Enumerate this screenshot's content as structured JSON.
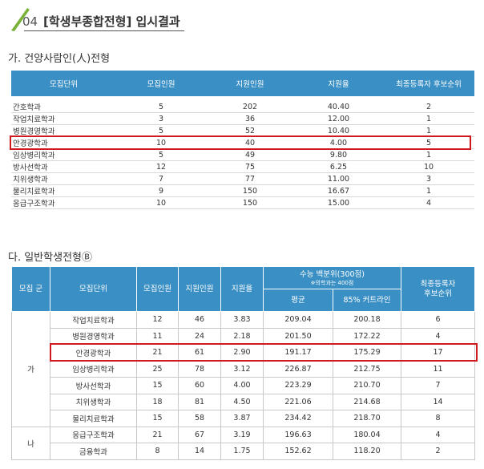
{
  "header": {
    "number": "04",
    "title": "[학생부종합전형] 입시결과"
  },
  "section1": {
    "title": "가. 건양사람인(人)전형",
    "table": {
      "headers": [
        "모집단위",
        "모집인원",
        "지원인원",
        "지원율",
        "최종등록자 후보순위"
      ],
      "rows": [
        [
          "간호학과",
          "5",
          "202",
          "40.40",
          "2"
        ],
        [
          "작업치료학과",
          "3",
          "36",
          "12.00",
          "1"
        ],
        [
          "병원경영학과",
          "5",
          "52",
          "10.40",
          "1"
        ],
        [
          "안경광학과",
          "10",
          "40",
          "4.00",
          "5"
        ],
        [
          "임상병리학과",
          "5",
          "49",
          "9.80",
          "1"
        ],
        [
          "방사선학과",
          "12",
          "75",
          "6.25",
          "10"
        ],
        [
          "치위생학과",
          "7",
          "77",
          "11.00",
          "3"
        ],
        [
          "물리치료학과",
          "9",
          "150",
          "16.67",
          "1"
        ],
        [
          "응급구조학과",
          "10",
          "150",
          "15.00",
          "4"
        ]
      ]
    }
  },
  "section2": {
    "title": "다. 일반학생전형Ⓑ",
    "table": {
      "headers": [
        "모집 군",
        "모집단위",
        "모집인원",
        "지원인원",
        "지원율"
      ],
      "suneung_header": {
        "title": "수능 백분위(300점)",
        "note": "※의학과는 400점",
        "sub": [
          "평균",
          "85% 커트라인"
        ]
      },
      "last_header": "최종등록자 후보순위",
      "groups": [
        {
          "label": "가",
          "rows": [
            [
              "작업치료학과",
              "12",
              "46",
              "3.83",
              "209.04",
              "200.18",
              "6"
            ],
            [
              "병원경영학과",
              "11",
              "24",
              "2.18",
              "201.50",
              "172.22",
              "4"
            ],
            [
              "안경광학과",
              "21",
              "61",
              "2.90",
              "191.17",
              "175.29",
              "17"
            ],
            [
              "임상병리학과",
              "25",
              "78",
              "3.12",
              "226.87",
              "212.75",
              "11"
            ],
            [
              "방사선학과",
              "15",
              "60",
              "4.00",
              "223.29",
              "210.70",
              "7"
            ],
            [
              "치위생학과",
              "18",
              "81",
              "4.50",
              "221.06",
              "214.68",
              "14"
            ],
            [
              "물리치료학과",
              "15",
              "58",
              "3.87",
              "234.42",
              "218.70",
              "8"
            ]
          ]
        },
        {
          "label": "나",
          "rows": [
            [
              "응급구조학과",
              "21",
              "67",
              "3.19",
              "196.63",
              "180.04",
              "4"
            ],
            [
              "금융학과",
              "8",
              "14",
              "1.75",
              "152.62",
              "118.20",
              "2"
            ]
          ]
        }
      ]
    }
  }
}
